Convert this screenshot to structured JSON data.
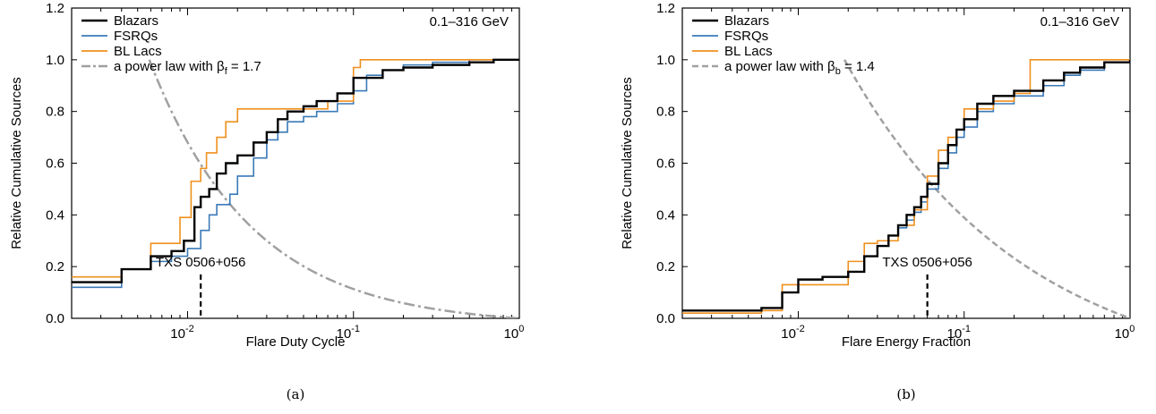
{
  "colors": {
    "blazars": "#000000",
    "fsrqs": "#3a7ab8",
    "bllacs": "#f0901e",
    "powerlaw": "#a0a0a0"
  },
  "chart_data": [
    {
      "type": "line",
      "panel_label": "(a)",
      "xscale": "log",
      "xlim": [
        0.002,
        1
      ],
      "ylim": [
        0,
        1.2
      ],
      "xlabel": "Flare Duty Cycle",
      "ylabel": "Relative Cumulative Sources",
      "energy_range": "0.1–316 GeV",
      "xticks": [
        0.01,
        0.1,
        1
      ],
      "xtick_labels": [
        {
          "base": "10",
          "exp": "-2"
        },
        {
          "base": "10",
          "exp": "-1"
        },
        {
          "base": "10",
          "exp": "0"
        }
      ],
      "yticks": [
        "0.0",
        "0.2",
        "0.4",
        "0.6",
        "0.8",
        "1.0",
        "1.2"
      ],
      "legend_position": "top-left",
      "legend": [
        {
          "key": "blazars",
          "label": "Blazars"
        },
        {
          "key": "fsrqs",
          "label": "FSRQs"
        },
        {
          "key": "bllacs",
          "label": "BL Lacs"
        },
        {
          "key": "powerlaw",
          "label_pre": "a power law with β",
          "label_sub": "f",
          "label_post": " = 1.7"
        }
      ],
      "annotation": {
        "text": "TXS 0506+056",
        "x": 0.012,
        "y_top": 0.17
      },
      "series": [
        {
          "key": "blazars",
          "type": "step",
          "x": [
            0.002,
            0.004,
            0.006,
            0.008,
            0.0095,
            0.011,
            0.012,
            0.0135,
            0.015,
            0.017,
            0.02,
            0.025,
            0.03,
            0.035,
            0.04,
            0.05,
            0.06,
            0.08,
            0.1,
            0.15,
            0.2,
            0.3,
            0.5,
            0.7,
            1.0
          ],
          "y": [
            0.14,
            0.19,
            0.24,
            0.26,
            0.3,
            0.43,
            0.47,
            0.5,
            0.56,
            0.6,
            0.63,
            0.68,
            0.72,
            0.77,
            0.8,
            0.82,
            0.84,
            0.87,
            0.93,
            0.96,
            0.97,
            0.98,
            0.99,
            1.0,
            1.0
          ]
        },
        {
          "key": "fsrqs",
          "type": "step",
          "x": [
            0.002,
            0.004,
            0.006,
            0.008,
            0.01,
            0.012,
            0.0135,
            0.015,
            0.018,
            0.02,
            0.025,
            0.03,
            0.035,
            0.04,
            0.05,
            0.06,
            0.08,
            0.1,
            0.12,
            0.15,
            0.2,
            0.3,
            0.5,
            1.0
          ],
          "y": [
            0.12,
            0.19,
            0.22,
            0.24,
            0.27,
            0.34,
            0.4,
            0.44,
            0.48,
            0.55,
            0.62,
            0.69,
            0.72,
            0.76,
            0.78,
            0.8,
            0.83,
            0.88,
            0.94,
            0.96,
            0.98,
            0.99,
            1.0,
            1.0
          ]
        },
        {
          "key": "bllacs",
          "type": "step",
          "x": [
            0.002,
            0.004,
            0.006,
            0.009,
            0.0105,
            0.012,
            0.013,
            0.015,
            0.017,
            0.02,
            0.03,
            0.05,
            0.07,
            0.1,
            0.11,
            0.2,
            0.5,
            1.0
          ],
          "y": [
            0.16,
            0.19,
            0.29,
            0.39,
            0.53,
            0.58,
            0.64,
            0.7,
            0.76,
            0.81,
            0.81,
            0.81,
            0.84,
            0.97,
            1.0,
            1.0,
            1.0,
            1.0
          ]
        },
        {
          "key": "powerlaw",
          "type": "curve",
          "beta": 1.7,
          "xmin": 0.005877,
          "xmax": 1
        }
      ]
    },
    {
      "type": "line",
      "panel_label": "(b)",
      "xscale": "log",
      "xlim": [
        0.002,
        1
      ],
      "ylim": [
        0,
        1.2
      ],
      "xlabel": "Flare Energy Fraction",
      "ylabel": "Relative Cumulative Sources",
      "energy_range": "0.1–316 GeV",
      "xticks": [
        0.01,
        0.1,
        1
      ],
      "xtick_labels": [
        {
          "base": "10",
          "exp": "-2"
        },
        {
          "base": "10",
          "exp": "-1"
        },
        {
          "base": "10",
          "exp": "0"
        }
      ],
      "yticks": [
        "0.0",
        "0.2",
        "0.4",
        "0.6",
        "0.8",
        "1.0",
        "1.2"
      ],
      "legend_position": "top-left",
      "legend": [
        {
          "key": "blazars",
          "label": "Blazars"
        },
        {
          "key": "fsrqs",
          "label": "FSRQs"
        },
        {
          "key": "bllacs",
          "label": "BL Lacs"
        },
        {
          "key": "powerlaw",
          "label_pre": "a power law with β",
          "label_sub": "b",
          "label_post": " = 1.4"
        }
      ],
      "annotation": {
        "text": "TXS 0506+056",
        "x": 0.06,
        "y_top": 0.17
      },
      "series": [
        {
          "key": "blazars",
          "type": "step",
          "x": [
            0.002,
            0.006,
            0.008,
            0.01,
            0.014,
            0.02,
            0.025,
            0.03,
            0.035,
            0.04,
            0.045,
            0.05,
            0.055,
            0.06,
            0.07,
            0.08,
            0.09,
            0.1,
            0.12,
            0.15,
            0.2,
            0.3,
            0.4,
            0.5,
            0.7,
            1.0
          ],
          "y": [
            0.03,
            0.04,
            0.1,
            0.15,
            0.16,
            0.18,
            0.24,
            0.28,
            0.32,
            0.36,
            0.4,
            0.43,
            0.47,
            0.52,
            0.6,
            0.67,
            0.73,
            0.77,
            0.83,
            0.86,
            0.88,
            0.92,
            0.95,
            0.97,
            0.99,
            1.0
          ]
        },
        {
          "key": "fsrqs",
          "type": "step",
          "x": [
            0.002,
            0.006,
            0.008,
            0.01,
            0.014,
            0.02,
            0.025,
            0.03,
            0.035,
            0.04,
            0.045,
            0.05,
            0.055,
            0.06,
            0.07,
            0.08,
            0.09,
            0.1,
            0.12,
            0.15,
            0.2,
            0.3,
            0.4,
            0.5,
            0.7,
            1.0
          ],
          "y": [
            0.03,
            0.04,
            0.1,
            0.15,
            0.16,
            0.18,
            0.24,
            0.28,
            0.32,
            0.35,
            0.38,
            0.41,
            0.45,
            0.5,
            0.58,
            0.64,
            0.7,
            0.74,
            0.8,
            0.83,
            0.86,
            0.9,
            0.94,
            0.96,
            0.99,
            1.0
          ]
        },
        {
          "key": "bllacs",
          "type": "step",
          "x": [
            0.002,
            0.006,
            0.008,
            0.01,
            0.02,
            0.025,
            0.03,
            0.04,
            0.05,
            0.06,
            0.07,
            0.08,
            0.09,
            0.1,
            0.12,
            0.15,
            0.2,
            0.25,
            0.4,
            1.0
          ],
          "y": [
            0.02,
            0.03,
            0.13,
            0.13,
            0.22,
            0.29,
            0.3,
            0.36,
            0.42,
            0.55,
            0.65,
            0.7,
            0.73,
            0.81,
            0.81,
            0.84,
            0.87,
            1.0,
            1.0,
            1.0
          ]
        },
        {
          "key": "powerlaw",
          "type": "curve",
          "beta": 1.4,
          "xmin": 0.01899,
          "xmax": 1
        }
      ]
    }
  ]
}
